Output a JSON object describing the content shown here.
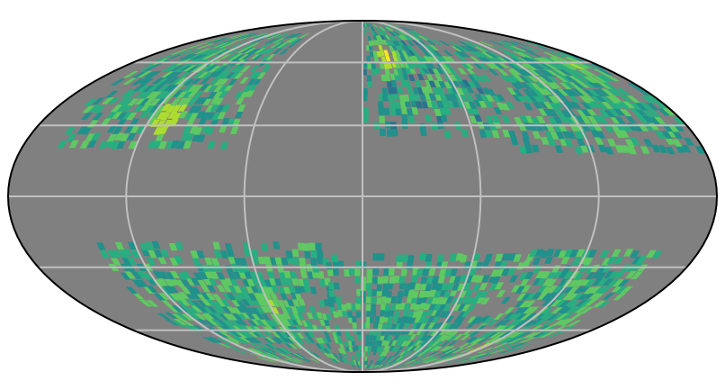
{
  "map": {
    "projection": "mollweide",
    "colors": {
      "background": "#808080",
      "outline": "#000000",
      "graticule": "#c0c0c0",
      "colormap": [
        "#3b528b",
        "#2c728e",
        "#21918c",
        "#28ae80",
        "#5ec962",
        "#addc30",
        "#fde725"
      ]
    },
    "graticule": {
      "meridians_deg": [
        -120,
        -60,
        0,
        60,
        120
      ],
      "parallels_deg": [
        -60,
        -30,
        0,
        30,
        60
      ]
    },
    "regions": [
      {
        "id": "north-west-band",
        "lon": [
          -165,
          -70
        ],
        "lat": [
          20,
          75
        ],
        "intensity": 0.5
      },
      {
        "id": "north-arc-east",
        "lon": [
          0,
          80
        ],
        "lat": [
          25,
          85
        ],
        "intensity": 0.45
      },
      {
        "id": "north-east-band",
        "lon": [
          80,
          178
        ],
        "lat": [
          18,
          70
        ],
        "intensity": 0.5
      },
      {
        "id": "south-west-arc",
        "lon": [
          -140,
          -20
        ],
        "lat": [
          -80,
          -22
        ],
        "intensity": 0.5
      },
      {
        "id": "south-center-arc",
        "lon": [
          -20,
          90
        ],
        "lat": [
          -85,
          -25
        ],
        "intensity": 0.5
      },
      {
        "id": "south-east-band",
        "lon": [
          90,
          160
        ],
        "lat": [
          -80,
          -25
        ],
        "intensity": 0.5
      }
    ],
    "hotspots": [
      {
        "lon": -112,
        "lat": 32,
        "value": 0.95
      },
      {
        "lon": 19,
        "lat": 62,
        "value": 0.98
      },
      {
        "lon": 117,
        "lat": -74,
        "value": 0.9
      },
      {
        "lon": -60,
        "lat": -50,
        "value": 0.85
      },
      {
        "lon": 150,
        "lat": -55,
        "value": 0.82
      },
      {
        "lon": 160,
        "lat": 57,
        "value": 0.8
      }
    ]
  }
}
